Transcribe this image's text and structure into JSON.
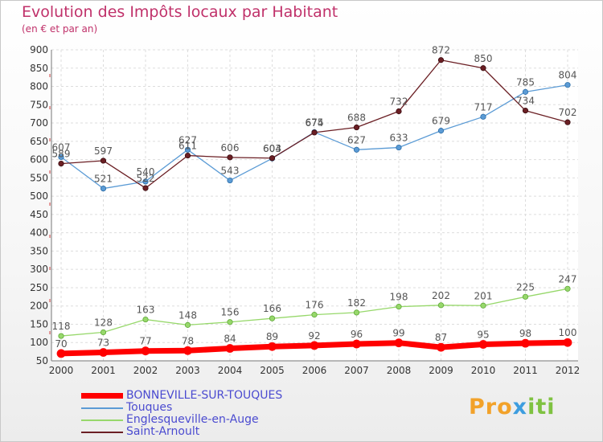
{
  "header": {
    "title": "Evolution des Impôts locaux par Habitant",
    "subtitle": "(en € et par an)"
  },
  "brand": {
    "part1": "Pro",
    "part2": "x",
    "part3": "iti"
  },
  "chart_data": {
    "type": "line",
    "title": "Evolution des Impôts locaux par Habitant",
    "subtitle": "(en € et par an)",
    "categories": [
      "2000",
      "2001",
      "2002",
      "2003",
      "2004",
      "2005",
      "2006",
      "2007",
      "2008",
      "2009",
      "2010",
      "2011",
      "2012"
    ],
    "ylim": [
      50,
      900
    ],
    "yticks": [
      50,
      100,
      150,
      200,
      250,
      300,
      350,
      400,
      450,
      500,
      550,
      600,
      650,
      700,
      750,
      800,
      850,
      900
    ],
    "grid": true,
    "legend_position": "bottom-left",
    "series": [
      {
        "name": "BONNEVILLE-SUR-TOUQUES",
        "color": "#ff0000",
        "width": 7,
        "marker": 5,
        "values": [
          70,
          73,
          77,
          78,
          84,
          89,
          92,
          96,
          99,
          87,
          95,
          98,
          100
        ]
      },
      {
        "name": "Touques",
        "color": "#5b9bd5",
        "width": 1.3,
        "marker": 3.2,
        "values": [
          607,
          521,
          540,
          627,
          543,
          603,
          675,
          627,
          633,
          679,
          717,
          785,
          804
        ]
      },
      {
        "name": "Englesqueville-en-Auge",
        "color": "#97d86b",
        "width": 1.3,
        "marker": 3.2,
        "values": [
          118,
          128,
          163,
          148,
          156,
          166,
          176,
          182,
          198,
          202,
          201,
          225,
          247
        ]
      },
      {
        "name": "Saint-Arnoult",
        "color": "#6b1f24",
        "width": 1.3,
        "marker": 3.2,
        "values": [
          589,
          597,
          522,
          611,
          606,
          604,
          674,
          688,
          732,
          872,
          850,
          734,
          702
        ]
      }
    ]
  }
}
